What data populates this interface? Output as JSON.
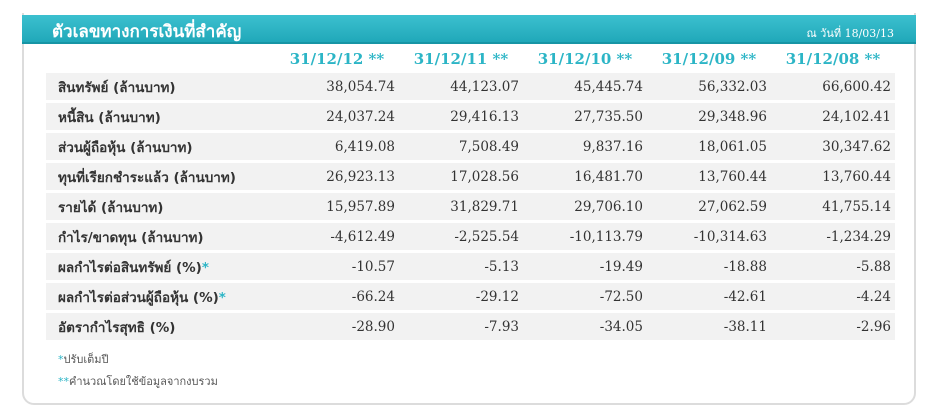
{
  "header": {
    "title": "ตัวเลขทางการเงินที่สำคัญ",
    "date": "ณ วันที่ 18/03/13"
  },
  "columns": [
    "31/12/12 **",
    "31/12/11 **",
    "31/12/10 **",
    "31/12/09 **",
    "31/12/08 **"
  ],
  "rows": [
    {
      "label": "สินทรัพย์ (ล้านบาท)",
      "star": "",
      "values": [
        "38,054.74",
        "44,123.07",
        "45,445.74",
        "56,332.03",
        "66,600.42"
      ]
    },
    {
      "label": "หนี้สิน (ล้านบาท)",
      "star": "",
      "values": [
        "24,037.24",
        "29,416.13",
        "27,735.50",
        "29,348.96",
        "24,102.41"
      ]
    },
    {
      "label": "ส่วนผู้ถือหุ้น (ล้านบาท)",
      "star": "",
      "values": [
        "6,419.08",
        "7,508.49",
        "9,837.16",
        "18,061.05",
        "30,347.62"
      ]
    },
    {
      "label": "ทุนที่เรียกชำระแล้ว (ล้านบาท)",
      "star": "",
      "values": [
        "26,923.13",
        "17,028.56",
        "16,481.70",
        "13,760.44",
        "13,760.44"
      ]
    },
    {
      "label": "รายได้ (ล้านบาท)",
      "star": "",
      "values": [
        "15,957.89",
        "31,829.71",
        "29,706.10",
        "27,062.59",
        "41,755.14"
      ]
    },
    {
      "label": "กำไร/ขาดทุน (ล้านบาท)",
      "star": "",
      "values": [
        "-4,612.49",
        "-2,525.54",
        "-10,113.79",
        "-10,314.63",
        "-1,234.29"
      ]
    },
    {
      "label": "ผลกำไรต่อสินทรัพย์ (%)",
      "star": "*",
      "values": [
        "-10.57",
        "-5.13",
        "-19.49",
        "-18.88",
        "-5.88"
      ]
    },
    {
      "label": "ผลกำไรต่อส่วนผู้ถือหุ้น (%)",
      "star": "*",
      "values": [
        "-66.24",
        "-29.12",
        "-72.50",
        "-42.61",
        "-4.24"
      ]
    },
    {
      "label": "อัตรากำไรสุทธิ (%)",
      "star": "",
      "values": [
        "-28.90",
        "-7.93",
        "-34.05",
        "-38.11",
        "-2.96"
      ]
    }
  ],
  "footnotes": [
    {
      "mark": "*",
      "text": "ปรับเต็มปี"
    },
    {
      "mark": "**",
      "text": "คำนวณโดยใช้ข้อมูลจากงบรวม"
    }
  ],
  "colors": {
    "accent": "#2cb5c6",
    "header_bg": "#20a8b9",
    "row_bg": "#f2f2f2"
  }
}
